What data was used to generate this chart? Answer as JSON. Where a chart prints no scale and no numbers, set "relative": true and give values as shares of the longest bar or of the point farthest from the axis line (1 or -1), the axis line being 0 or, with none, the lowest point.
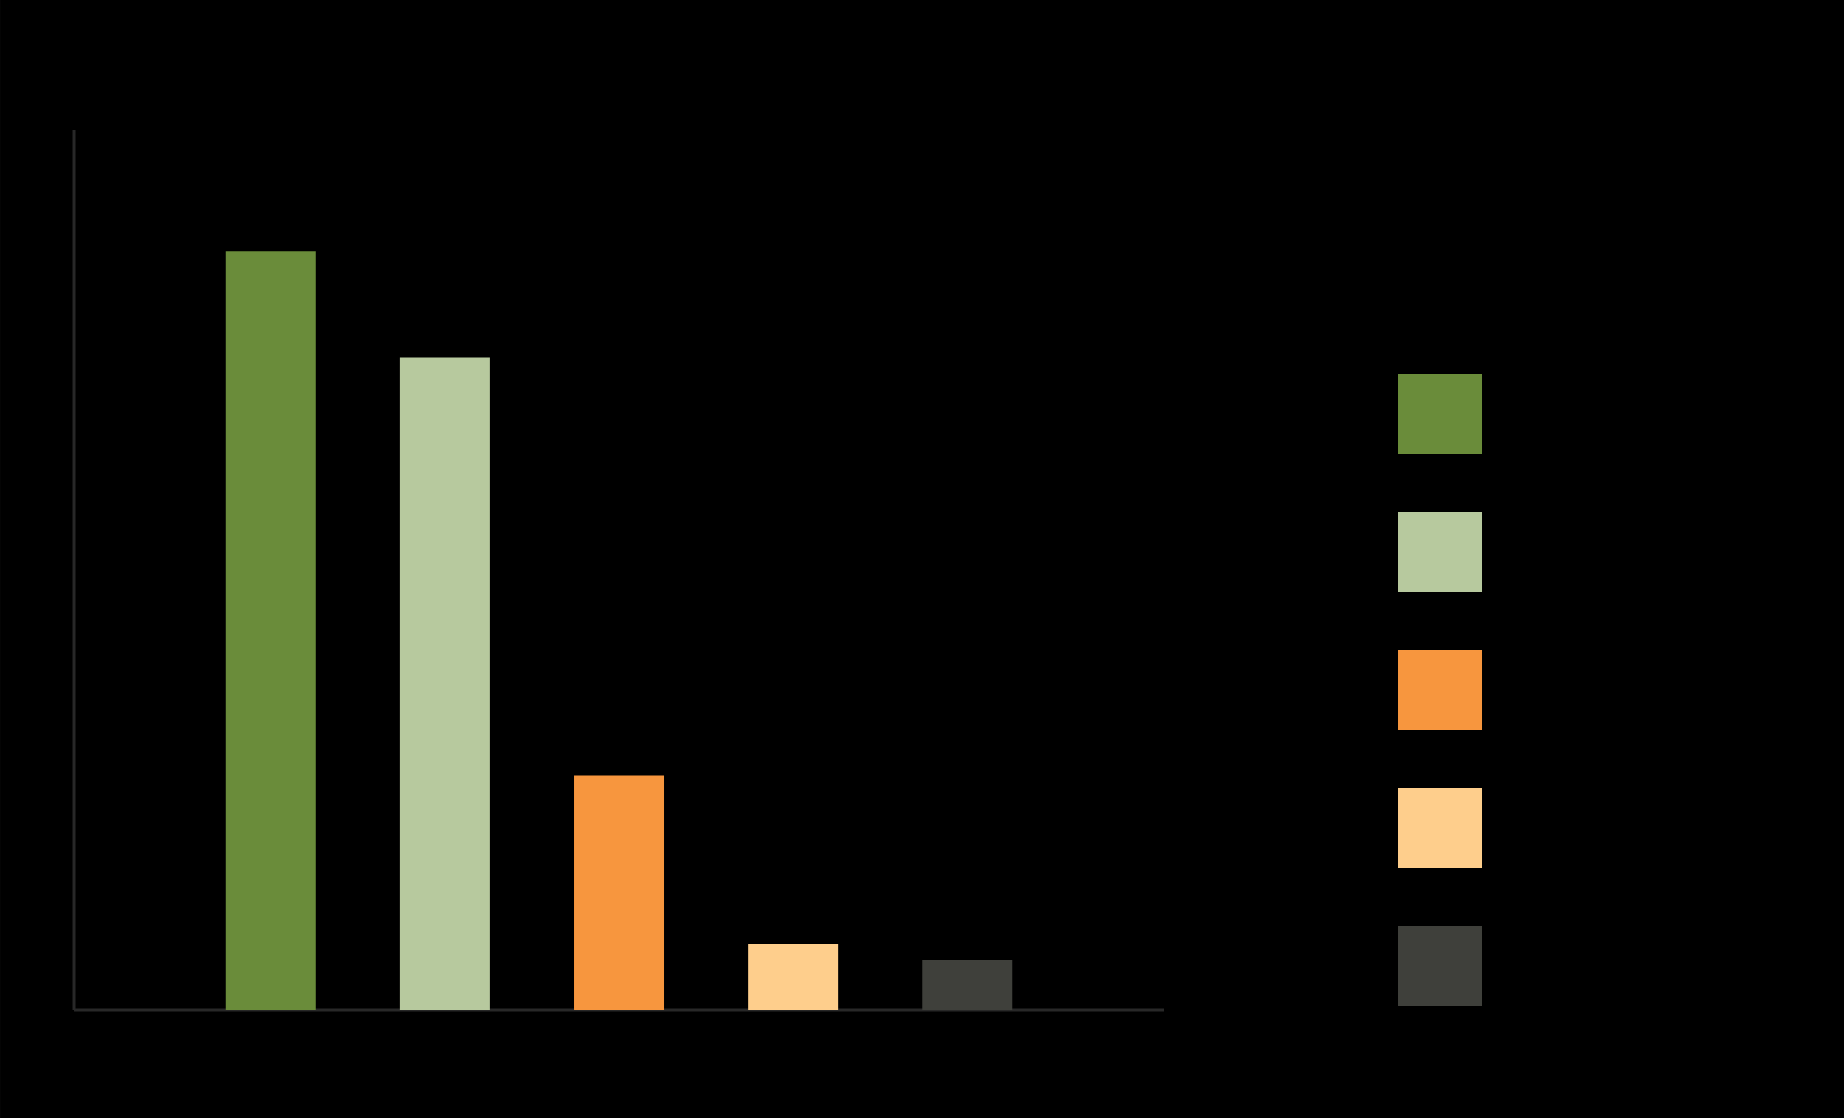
{
  "chart_data": {
    "type": "bar",
    "relative": true,
    "categories": [
      null,
      null,
      null,
      null,
      null
    ],
    "values": [
      1,
      0.86,
      0.309,
      0.087,
      0.066
    ],
    "colors": [
      "#6a8c3a",
      "#b7c99e",
      "#f7963e",
      "#fece8c",
      "#3f403b"
    ]
  }
}
